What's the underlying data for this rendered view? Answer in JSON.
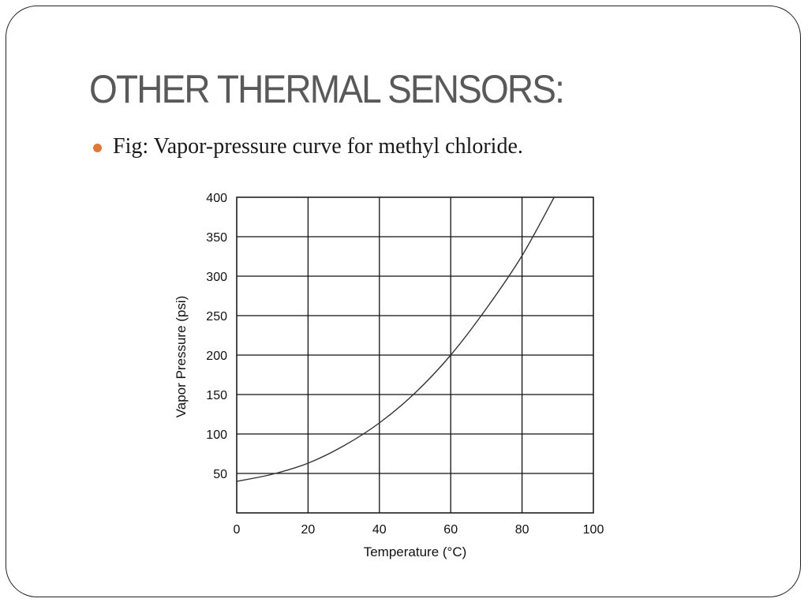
{
  "slide": {
    "title": "OTHER THERMAL SENSORS:",
    "bullet": "Fig: Vapor-pressure curve for methyl chloride.",
    "bullet_color": "#e0773b",
    "title_color": "#595959"
  },
  "chart_data": {
    "type": "line",
    "title": "",
    "xlabel": "Temperature (°C)",
    "ylabel": "Vapor Pressure (psi)",
    "xlim": [
      0,
      100
    ],
    "ylim": [
      0,
      400
    ],
    "x_ticks": [
      0,
      20,
      40,
      60,
      80,
      100
    ],
    "y_ticks": [
      50,
      100,
      150,
      200,
      250,
      300,
      350,
      400
    ],
    "y_tick_labels": [
      "50",
      "100",
      "150",
      "200",
      "250",
      "300",
      "350",
      "400"
    ],
    "x_tick_labels": [
      "0",
      "20",
      "40",
      "60",
      "80",
      "100"
    ],
    "grid": true,
    "series": [
      {
        "x": [
          0,
          10,
          20,
          30,
          40,
          50,
          60,
          70,
          80,
          89
        ],
        "y": [
          40,
          49,
          63,
          85,
          114,
          152,
          200,
          259,
          326,
          400
        ]
      }
    ]
  }
}
